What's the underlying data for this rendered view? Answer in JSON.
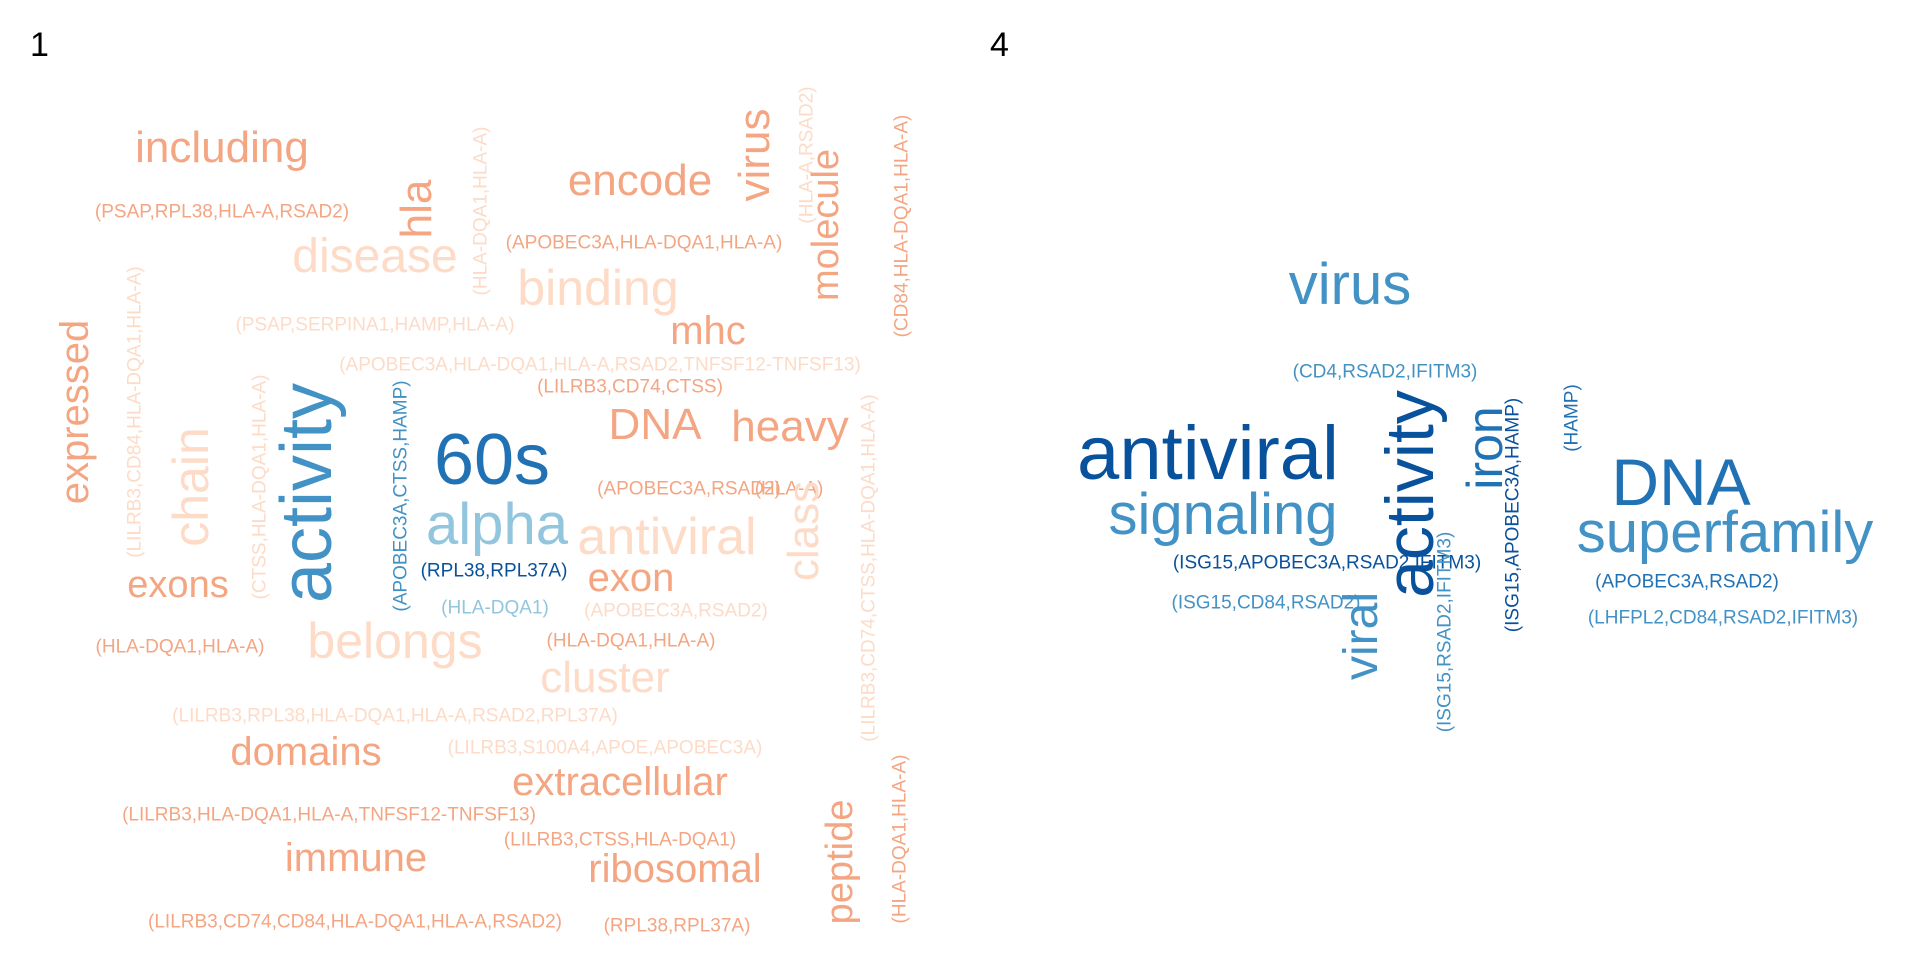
{
  "colors": {
    "dark_blue": "#08519c",
    "blue": "#2171b5",
    "mid_blue": "#4292c6",
    "light_blue": "#92c5de",
    "salmon": "#f4a582",
    "light_salmon": "#fddbc7",
    "pale_salmon": "#fcd6c2"
  },
  "panels": [
    {
      "label": "1",
      "words": [
        {
          "text": "including",
          "color": "#f4a582"
        },
        {
          "text": "(PSAP,RPL38,HLA-A,RSAD2)",
          "color": "#f4a582"
        },
        {
          "text": "hla",
          "color": "#f4a582"
        },
        {
          "text": "disease",
          "color": "#fddbc7"
        },
        {
          "text": "(HLA-DQA1,HLA-A)",
          "color": "#fddbc7"
        },
        {
          "text": "encode",
          "color": "#f4a582"
        },
        {
          "text": "virus",
          "color": "#f4a582"
        },
        {
          "text": "(HLA-A,RSAD2)",
          "color": "#fddbc7"
        },
        {
          "text": "molecule",
          "color": "#f4a582"
        },
        {
          "text": "(CD84,HLA-DQA1,HLA-A)",
          "color": "#f4a582"
        },
        {
          "text": "(APOBEC3A,HLA-DQA1,HLA-A)",
          "color": "#f4a582"
        },
        {
          "text": "binding",
          "color": "#fddbc7"
        },
        {
          "text": "(PSAP,SERPINA1,HAMP,HLA-A)",
          "color": "#fddbc7"
        },
        {
          "text": "mhc",
          "color": "#f4a582"
        },
        {
          "text": "(APOBEC3A,HLA-DQA1,HLA-A,RSAD2,TNFSF12-TNFSF13)",
          "color": "#fddbc7"
        },
        {
          "text": "(LILRB3,CD74,CTSS)",
          "color": "#f4a582"
        },
        {
          "text": "expressed",
          "color": "#f4a582"
        },
        {
          "text": "(LILRB3,CD84,HLA-DQA1,HLA-A)",
          "color": "#fddbc7"
        },
        {
          "text": "chain",
          "color": "#fddbc7"
        },
        {
          "text": "(CTSS,HLA-DQA1,HLA-A)",
          "color": "#fddbc7"
        },
        {
          "text": "activity",
          "color": "#4292c6"
        },
        {
          "text": "(APOBEC3A,CTSS,HAMP)",
          "color": "#4292c6"
        },
        {
          "text": "60s",
          "color": "#2171b5"
        },
        {
          "text": "DNA",
          "color": "#f4a582"
        },
        {
          "text": "heavy",
          "color": "#f4a582"
        },
        {
          "text": "(HLA-A)",
          "color": "#f4a582"
        },
        {
          "text": "(APOBEC3A,RSAD2)",
          "color": "#f4a582"
        },
        {
          "text": "alpha",
          "color": "#92c5de"
        },
        {
          "text": "antiviral",
          "color": "#fddbc7"
        },
        {
          "text": "class",
          "color": "#fddbc7"
        },
        {
          "text": "(LILRB3,CD74,CTSS,HLA-DQA1,HLA-A)",
          "color": "#fddbc7"
        },
        {
          "text": "(RPL38,RPL37A)",
          "color": "#08519c"
        },
        {
          "text": "exons",
          "color": "#f4a582"
        },
        {
          "text": "exon",
          "color": "#f4a582"
        },
        {
          "text": "(HLA-DQA1)",
          "color": "#92c5de"
        },
        {
          "text": "(APOBEC3A,RSAD2)",
          "color": "#fddbc7"
        },
        {
          "text": "(HLA-DQA1,HLA-A)",
          "color": "#f4a582"
        },
        {
          "text": "belongs",
          "color": "#fddbc7"
        },
        {
          "text": "(HLA-DQA1,HLA-A)",
          "color": "#f4a582"
        },
        {
          "text": "cluster",
          "color": "#fddbc7"
        },
        {
          "text": "(LILRB3,RPL38,HLA-DQA1,HLA-A,RSAD2,RPL37A)",
          "color": "#fddbc7"
        },
        {
          "text": "domains",
          "color": "#f4a582"
        },
        {
          "text": "(LILRB3,S100A4,APOE,APOBEC3A)",
          "color": "#fddbc7"
        },
        {
          "text": "extracellular",
          "color": "#f4a582"
        },
        {
          "text": "(LILRB3,HLA-DQA1,HLA-A,TNFSF12-TNFSF13)",
          "color": "#f4a582"
        },
        {
          "text": "(LILRB3,CTSS,HLA-DQA1)",
          "color": "#f4a582"
        },
        {
          "text": "immune",
          "color": "#f4a582"
        },
        {
          "text": "ribosomal",
          "color": "#f4a582"
        },
        {
          "text": "peptide",
          "color": "#f4a582"
        },
        {
          "text": "(HLA-DQA1,HLA-A)",
          "color": "#f4a582"
        },
        {
          "text": "(LILRB3,CD74,CD84,HLA-DQA1,HLA-A,RSAD2)",
          "color": "#f4a582"
        },
        {
          "text": "(RPL38,RPL37A)",
          "color": "#f4a582"
        }
      ]
    },
    {
      "label": "4",
      "words": [
        {
          "text": "virus",
          "color": "#4292c6"
        },
        {
          "text": "(CD4,RSAD2,IFITM3)",
          "color": "#4292c6"
        },
        {
          "text": "antiviral",
          "color": "#08519c"
        },
        {
          "text": "signaling",
          "color": "#4292c6"
        },
        {
          "text": "activity",
          "color": "#08519c"
        },
        {
          "text": "iron",
          "color": "#2171b5"
        },
        {
          "text": "(ISG15,APOBEC3A,HAMP)",
          "color": "#08519c"
        },
        {
          "text": "(HAMP)",
          "color": "#2171b5"
        },
        {
          "text": "DNA",
          "color": "#2171b5"
        },
        {
          "text": "superfamily",
          "color": "#4292c6"
        },
        {
          "text": "(ISG15,APOBEC3A,RSAD2,IFITM3)",
          "color": "#08519c"
        },
        {
          "text": "(ISG15,CD84,RSAD2)",
          "color": "#4292c6"
        },
        {
          "text": "viral",
          "color": "#4292c6"
        },
        {
          "text": "(ISG15,RSAD2,IFITM3)",
          "color": "#4292c6"
        },
        {
          "text": "(APOBEC3A,RSAD2)",
          "color": "#2171b5"
        },
        {
          "text": "(LHFPL2,CD84,RSAD2,IFITM3)",
          "color": "#4292c6"
        }
      ]
    }
  ]
}
